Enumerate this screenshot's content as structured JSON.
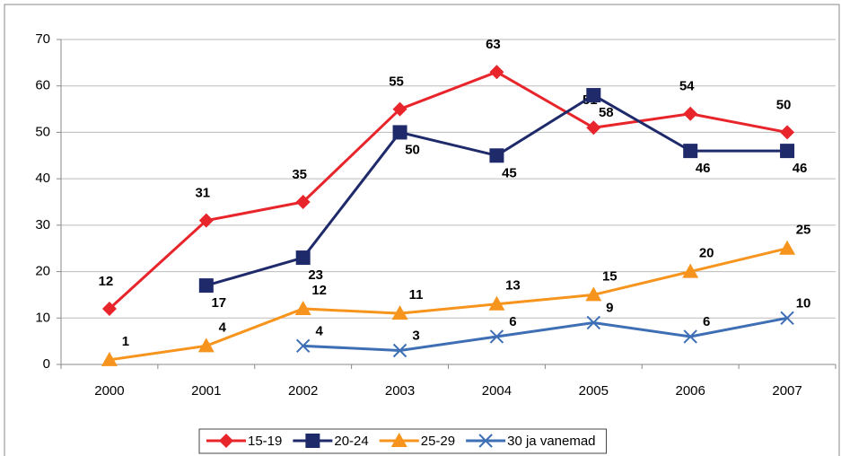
{
  "chart_data": {
    "type": "line",
    "categories": [
      "2000",
      "2001",
      "2002",
      "2003",
      "2004",
      "2005",
      "2006",
      "2007"
    ],
    "series": [
      {
        "name": "15-19",
        "color": "#e8252b",
        "marker": "diamond",
        "values": [
          12,
          31,
          35,
          55,
          63,
          51,
          54,
          50
        ]
      },
      {
        "name": "20-24",
        "color": "#1f2a6b",
        "marker": "square",
        "values": [
          null,
          17,
          23,
          50,
          45,
          58,
          46,
          46
        ]
      },
      {
        "name": "25-29",
        "color": "#f7941d",
        "marker": "triangle",
        "values": [
          1,
          4,
          12,
          11,
          13,
          15,
          20,
          25
        ]
      },
      {
        "name": "30 ja vanemad",
        "color": "#3e6fb5",
        "marker": "x",
        "values": [
          null,
          null,
          4,
          3,
          6,
          9,
          6,
          10
        ]
      }
    ],
    "ylim": [
      0,
      70
    ],
    "yticks": [
      0,
      10,
      20,
      30,
      40,
      50,
      60,
      70
    ],
    "grid": true,
    "legend": "bottom"
  }
}
